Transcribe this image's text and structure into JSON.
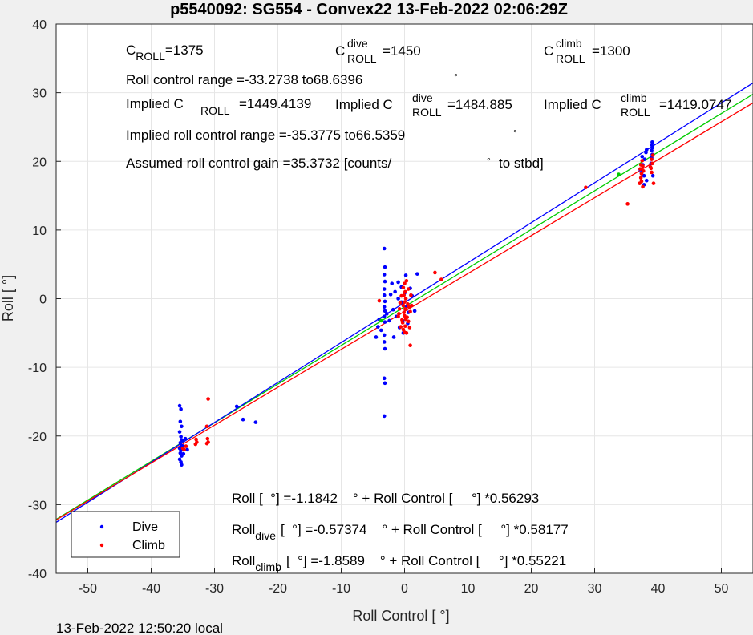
{
  "title": "p5540092: SG554 - Convex22 13-Feb-2022 02:06:29Z",
  "footer": "13-Feb-2022 12:50:20 local",
  "colors": {
    "dive": "#0000ff",
    "climb": "#ff0000",
    "combined_fit": "#00cc00",
    "grid": "#e6e6e6",
    "background": "#f0f0f0",
    "plot_background": "#ffffff"
  },
  "annotations": {
    "c_roll": "1375",
    "c_roll_dive": "1450",
    "c_roll_climb": "=1300",
    "roll_control_range": "Roll control range =-33.2738 to68.6396",
    "implied_c_roll": "=1449.4139",
    "implied_c_roll_dive": "=1484.885",
    "implied_c_roll_climb": "=1419.0747",
    "implied_range": "Implied roll control range =-35.3775 to66.5359",
    "assumed_gain": "Assumed roll control gain =35.3732 [counts/",
    "assumed_gain_tail": "to stbd]",
    "eq_all": "Roll [  °] =-1.1842    ° + Roll Control [     °] *0.56293",
    "eq_dive_pre": "Roll",
    "eq_dive_sub": "dive",
    "eq_dive_post": "[  °] =-0.57374    ° + Roll Control [     °] *0.58177",
    "eq_climb_pre": "Roll",
    "eq_climb_sub": "climb",
    "eq_climb_post": "[  °] =-1.8589    ° + Roll Control [     °] *0.55221"
  },
  "chart_data": {
    "type": "scatter",
    "xlabel": "Roll Control [     °]",
    "ylabel": "Roll [  °]",
    "xlim": [
      -55,
      55
    ],
    "ylim": [
      -40,
      40
    ],
    "xticks": [
      -50,
      -40,
      -30,
      -20,
      -10,
      0,
      10,
      20,
      30,
      40,
      50
    ],
    "yticks": [
      -40,
      -30,
      -20,
      -10,
      0,
      10,
      20,
      30,
      40
    ],
    "grid": true,
    "legend": {
      "position": "bottom-left",
      "entries": [
        "Dive",
        "Climb"
      ]
    },
    "fits": [
      {
        "name": "All",
        "intercept": -1.1842,
        "slope": 0.56293,
        "color": "#00cc00"
      },
      {
        "name": "Dive",
        "intercept": -0.57374,
        "slope": 0.58177,
        "color": "#0000ff"
      },
      {
        "name": "Climb",
        "intercept": -1.8589,
        "slope": 0.55221,
        "color": "#ff0000"
      }
    ],
    "series": [
      {
        "name": "Dive",
        "color": "#0000ff",
        "points": [
          [
            -35.5,
            -15.6
          ],
          [
            -35.3,
            -16.1
          ],
          [
            -35.4,
            -17.9
          ],
          [
            -35.2,
            -18.6
          ],
          [
            -35.5,
            -19.4
          ],
          [
            -35.3,
            -20.1
          ],
          [
            -35.1,
            -20.6
          ],
          [
            -35.4,
            -21.0
          ],
          [
            -35.2,
            -21.4
          ],
          [
            -35.5,
            -21.8
          ],
          [
            -35.3,
            -22.1
          ],
          [
            -35.4,
            -22.5
          ],
          [
            -35.2,
            -22.9
          ],
          [
            -35.5,
            -23.4
          ],
          [
            -35.3,
            -23.8
          ],
          [
            -35.2,
            -24.2
          ],
          [
            -34.9,
            -21.5
          ],
          [
            -34.6,
            -20.4
          ],
          [
            -34.3,
            -22.0
          ],
          [
            -34.9,
            -22.6
          ],
          [
            -26.5,
            -15.7
          ],
          [
            -25.5,
            -17.6
          ],
          [
            -23.5,
            -18.0
          ],
          [
            -3.2,
            7.3
          ],
          [
            -3.1,
            4.6
          ],
          [
            -3.2,
            3.5
          ],
          [
            -3.1,
            2.5
          ],
          [
            -3.2,
            1.4
          ],
          [
            -3.2,
            0.5
          ],
          [
            -3.1,
            -0.4
          ],
          [
            -3.2,
            -1.2
          ],
          [
            -3.1,
            -1.8
          ],
          [
            -3.2,
            -2.6
          ],
          [
            -3.1,
            -3.4
          ],
          [
            -3.2,
            -5.3
          ],
          [
            -3.2,
            -6.3
          ],
          [
            -3.1,
            -7.3
          ],
          [
            -3.2,
            -11.6
          ],
          [
            -3.1,
            -12.3
          ],
          [
            -3.2,
            -17.1
          ],
          [
            -4.2,
            -4.1
          ],
          [
            -4.5,
            -5.6
          ],
          [
            -4.0,
            -3.0
          ],
          [
            -3.7,
            -4.6
          ],
          [
            -2.8,
            -2.2
          ],
          [
            -2.0,
            2.2
          ],
          [
            -1.5,
            1.0
          ],
          [
            -1.0,
            0.0
          ],
          [
            -0.5,
            -0.5
          ],
          [
            0.0,
            0.8
          ],
          [
            0.3,
            -1.2
          ],
          [
            0.6,
            -2.0
          ],
          [
            0.9,
            1.5
          ],
          [
            -1.8,
            -1.6
          ],
          [
            -2.4,
            -3.2
          ],
          [
            -0.8,
            -4.2
          ],
          [
            0.2,
            3.4
          ],
          [
            1.2,
            0.4
          ],
          [
            1.6,
            -1.8
          ],
          [
            -1.3,
            -2.6
          ],
          [
            -0.3,
            -3.2
          ],
          [
            0.5,
            -3.6
          ],
          [
            -1.0,
            2.4
          ],
          [
            -2.2,
            0.6
          ],
          [
            -0.2,
            -5.0
          ],
          [
            2.0,
            3.6
          ],
          [
            -1.7,
            -5.6
          ],
          [
            -0.5,
            1.7
          ],
          [
            37.2,
            18.8
          ],
          [
            37.6,
            19.5
          ],
          [
            37.9,
            20.3
          ],
          [
            38.1,
            21.3
          ],
          [
            38.2,
            21.7
          ],
          [
            37.5,
            20.7
          ],
          [
            37.8,
            17.9
          ],
          [
            37.4,
            18.3
          ],
          [
            39.0,
            20.5
          ],
          [
            39.1,
            21.0
          ],
          [
            39.0,
            21.6
          ],
          [
            39.1,
            22.0
          ],
          [
            39.0,
            22.4
          ],
          [
            39.1,
            22.8
          ],
          [
            38.9,
            19.7
          ],
          [
            39.2,
            17.9
          ],
          [
            38.2,
            17.2
          ],
          [
            37.8,
            16.6
          ]
        ]
      },
      {
        "name": "Climb",
        "color": "#ff0000",
        "points": [
          [
            -31.0,
            -14.6
          ],
          [
            -31.2,
            -18.6
          ],
          [
            -31.1,
            -20.4
          ],
          [
            -31.0,
            -20.9
          ],
          [
            -31.2,
            -21.1
          ],
          [
            -32.9,
            -20.5
          ],
          [
            -32.8,
            -20.9
          ],
          [
            -33.0,
            -21.2
          ],
          [
            -34.8,
            -22.0
          ],
          [
            -34.5,
            -21.5
          ],
          [
            -35.0,
            -21.8
          ],
          [
            -4.0,
            -0.3
          ],
          [
            0.0,
            2.2
          ],
          [
            -0.2,
            1.6
          ],
          [
            0.1,
            1.0
          ],
          [
            -0.1,
            0.5
          ],
          [
            0.2,
            0.0
          ],
          [
            0.0,
            -0.5
          ],
          [
            -0.2,
            -1.0
          ],
          [
            0.1,
            -1.5
          ],
          [
            -0.1,
            -2.0
          ],
          [
            0.0,
            -2.5
          ],
          [
            0.2,
            -3.0
          ],
          [
            -0.3,
            -3.5
          ],
          [
            0.1,
            -4.0
          ],
          [
            -0.2,
            -4.5
          ],
          [
            0.0,
            -4.9
          ],
          [
            0.3,
            2.6
          ],
          [
            0.5,
            -0.8
          ],
          [
            0.7,
            -1.2
          ],
          [
            0.9,
            -1.9
          ],
          [
            0.4,
            -2.7
          ],
          [
            0.6,
            -3.3
          ],
          [
            0.8,
            -4.2
          ],
          [
            0.3,
            -5.0
          ],
          [
            -0.5,
            0.4
          ],
          [
            -0.7,
            -0.6
          ],
          [
            -0.9,
            -2.2
          ],
          [
            -0.4,
            -3.1
          ],
          [
            -0.6,
            -4.1
          ],
          [
            -0.8,
            -1.5
          ],
          [
            -1.0,
            -2.6
          ],
          [
            1.0,
            0.5
          ],
          [
            1.1,
            -1.0
          ],
          [
            0.6,
            1.4
          ],
          [
            0.9,
            -6.8
          ],
          [
            4.8,
            3.8
          ],
          [
            5.8,
            2.8
          ],
          [
            28.6,
            16.2
          ],
          [
            35.2,
            13.8
          ],
          [
            37.1,
            16.8
          ],
          [
            37.3,
            17.6
          ],
          [
            37.4,
            18.2
          ],
          [
            37.2,
            18.9
          ],
          [
            37.3,
            19.5
          ],
          [
            37.5,
            20.1
          ],
          [
            37.6,
            16.3
          ],
          [
            37.6,
            19.3
          ],
          [
            37.7,
            18.6
          ],
          [
            37.4,
            17.1
          ],
          [
            38.8,
            19.2
          ],
          [
            39.1,
            19.7
          ],
          [
            39.0,
            20.3
          ],
          [
            39.2,
            20.9
          ],
          [
            39.3,
            16.8
          ],
          [
            39.0,
            18.4
          ],
          [
            38.9,
            19.0
          ]
        ]
      },
      {
        "name": "",
        "color": "#00cc00",
        "points": [
          [
            -3.7,
            -3.2
          ],
          [
            33.8,
            18.1
          ]
        ]
      }
    ]
  }
}
